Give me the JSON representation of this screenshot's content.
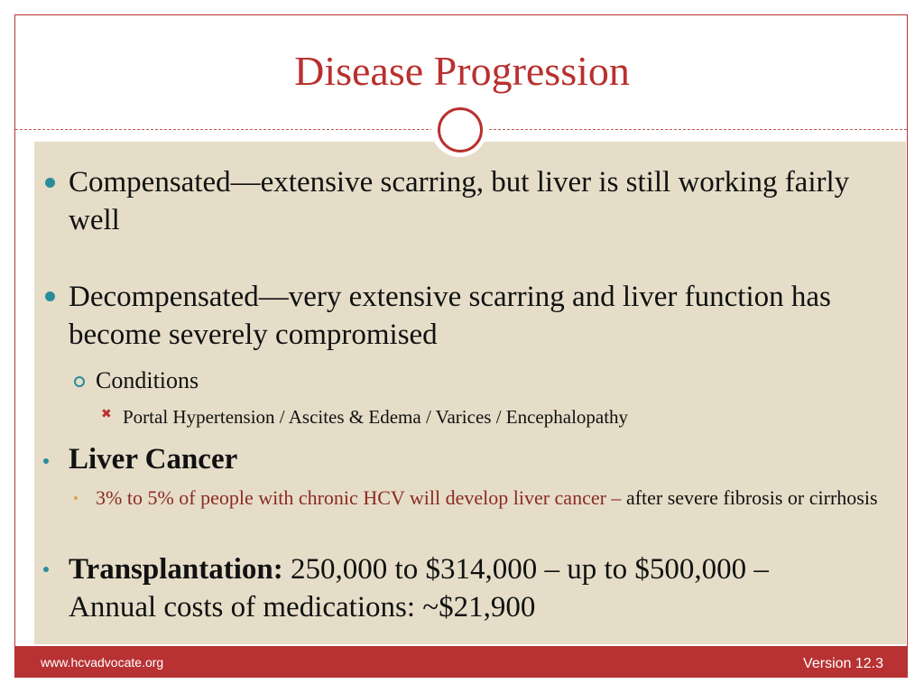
{
  "slide": {
    "title": "Disease Progression",
    "bullets": {
      "compensated": "Compensated—extensive scarring, but liver is still working fairly well",
      "decompensated": "Decompensated—very extensive scarring and liver function has become severely compromised",
      "conditions": "Conditions",
      "conditions_list": "Portal Hypertension / Ascites & Edema / Varices / Encephalopathy",
      "liver_cancer": "Liver Cancer",
      "cancer_stat_highlight": "3% to 5% of people with chronic HCV will develop liver cancer –",
      "cancer_stat_rest": " after severe fibrosis or cirrhosis",
      "transplant_label": "Transplantation:",
      "transplant_text": " 250,000 to $314,000 – up to $500,000 – Annual costs of medications:  ~$21,900"
    }
  },
  "footer": {
    "url": "www.hcvadvocate.org",
    "version": "Version 12.3"
  },
  "colors": {
    "accent": "#b83233",
    "content_bg": "#e5ddc8",
    "bullet": "#2a8c9b"
  }
}
